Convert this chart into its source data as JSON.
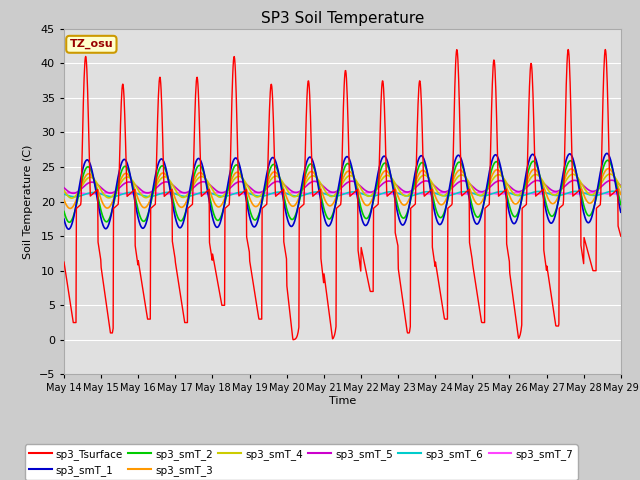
{
  "title": "SP3 Soil Temperature",
  "ylabel": "Soil Temperature (C)",
  "xlabel": "Time",
  "ylim": [
    -5,
    45
  ],
  "background_color": "#cccccc",
  "plot_bg_color": "#e0e0e0",
  "x_tick_labels": [
    "May 14",
    "May 15",
    "May 16",
    "May 17",
    "May 18",
    "May 19",
    "May 20",
    "May 21",
    "May 22",
    "May 23",
    "May 24",
    "May 25",
    "May 26",
    "May 27",
    "May 28",
    "May 29"
  ],
  "series_colors": {
    "sp3_Tsurface": "#ff0000",
    "sp3_smT_1": "#0000cc",
    "sp3_smT_2": "#00cc00",
    "sp3_smT_3": "#ff9900",
    "sp3_smT_4": "#cccc00",
    "sp3_smT_5": "#cc00cc",
    "sp3_smT_6": "#00cccc",
    "sp3_smT_7": "#ff44ff"
  },
  "annotation_text": "TZ_osu",
  "annotation_color": "#990000",
  "annotation_bg": "#ffffcc",
  "annotation_border": "#cc9900"
}
